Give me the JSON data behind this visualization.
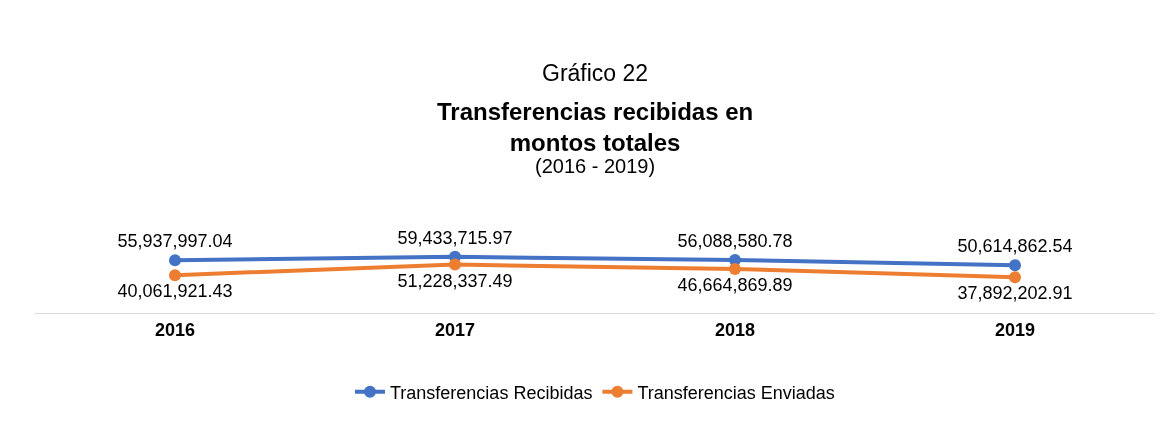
{
  "chart_data": {
    "type": "line",
    "title": "Transferencias recibidas en montos totales",
    "subtitle": "(2016 - 2019)",
    "annotations": [
      "Gráfico 22"
    ],
    "categories": [
      "2016",
      "2017",
      "2018",
      "2019"
    ],
    "series": [
      {
        "name": "Transferencias Recibidas",
        "color": "#4472c4",
        "values": [
          55937997.04,
          59433715.97,
          56088580.78,
          50614862.54
        ],
        "value_labels": [
          "55,937,997.04",
          "59,433,715.97",
          "56,088,580.78",
          "50,614,862.54"
        ]
      },
      {
        "name": "Transferencias Enviadas",
        "color": "#ed7d31",
        "values": [
          40061921.43,
          51228337.49,
          46664869.89,
          37892202.91
        ],
        "value_labels": [
          "40,061,921.43",
          "51,228,337.49",
          "46,664,869.89",
          "37,892,202.91"
        ]
      }
    ],
    "tick_labels": "x",
    "legend": "bottom",
    "marker": "circle",
    "line_style": "solid",
    "grid": false
  }
}
